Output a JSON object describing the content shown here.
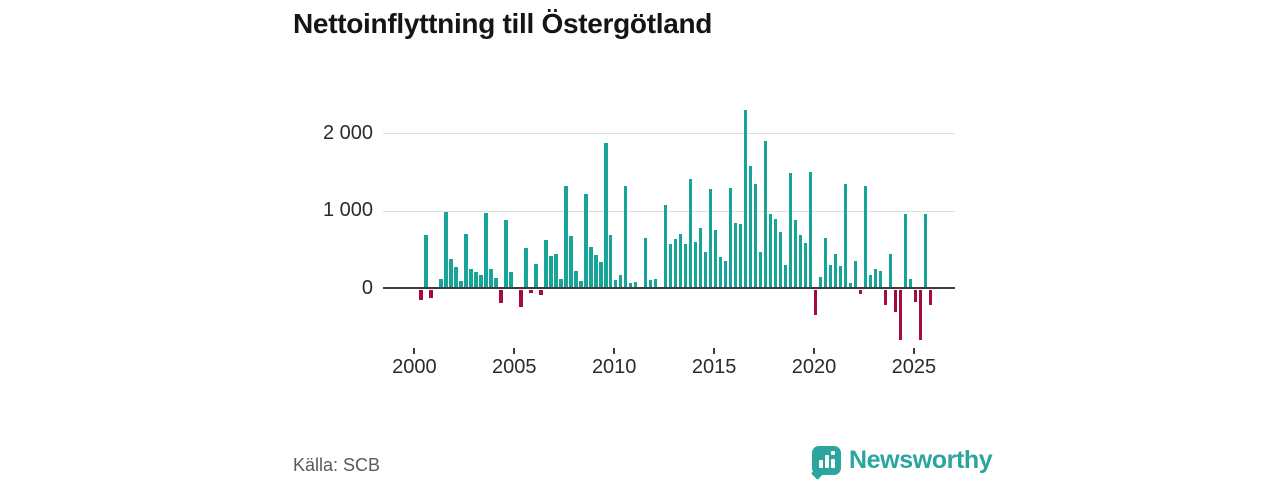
{
  "chart_data": {
    "type": "bar",
    "title": "Nettoinflyttning till Östergötland",
    "unit": "persons (net migration per quarter)",
    "frequency": "quarterly",
    "start": "2000 Q1",
    "end": "2025 Q4",
    "ylim": [
      -700,
      2400
    ],
    "grid": "horizontal",
    "y_ticks": [
      {
        "label": "2 000",
        "value": 2000
      },
      {
        "label": "1 000",
        "value": 1000
      },
      {
        "label": "0",
        "value": 0
      }
    ],
    "x_ticks": [
      "2000",
      "2005",
      "2010",
      "2015",
      "2020",
      "2025"
    ],
    "positive_color": "#17a59a",
    "negative_color": "#a50b3c",
    "years": [
      {
        "year": 2000,
        "values": [
          0,
          -130,
          680,
          -100
        ]
      },
      {
        "year": 2001,
        "values": [
          0,
          110,
          980,
          370
        ]
      },
      {
        "year": 2002,
        "values": [
          270,
          95,
          690,
          250
        ]
      },
      {
        "year": 2003,
        "values": [
          200,
          170,
          970,
          250
        ]
      },
      {
        "year": 2004,
        "values": [
          125,
          -170,
          880,
          200
        ]
      },
      {
        "year": 2005,
        "values": [
          0,
          -215,
          510,
          -40
        ]
      },
      {
        "year": 2006,
        "values": [
          310,
          -65,
          625,
          410
        ]
      },
      {
        "year": 2007,
        "values": [
          440,
          110,
          1310,
          670
        ]
      },
      {
        "year": 2008,
        "values": [
          220,
          95,
          1210,
          530
        ]
      },
      {
        "year": 2009,
        "values": [
          420,
          340,
          1870,
          680
        ]
      },
      {
        "year": 2010,
        "values": [
          100,
          170,
          1310,
          65
        ]
      },
      {
        "year": 2011,
        "values": [
          75,
          0,
          650,
          100
        ]
      },
      {
        "year": 2012,
        "values": [
          110,
          0,
          1070,
          570
        ]
      },
      {
        "year": 2013,
        "values": [
          630,
          690,
          570,
          1400
        ]
      },
      {
        "year": 2014,
        "values": [
          595,
          780,
          460,
          1280
        ]
      },
      {
        "year": 2015,
        "values": [
          750,
          400,
          350,
          1290
        ]
      },
      {
        "year": 2016,
        "values": [
          840,
          820,
          2290,
          1570
        ]
      },
      {
        "year": 2017,
        "values": [
          1340,
          470,
          1890,
          950
        ]
      },
      {
        "year": 2018,
        "values": [
          890,
          720,
          300,
          1480
        ]
      },
      {
        "year": 2019,
        "values": [
          880,
          680,
          580,
          1490
        ]
      },
      {
        "year": 2020,
        "values": [
          -320,
          140,
          650,
          300
        ]
      },
      {
        "year": 2021,
        "values": [
          440,
          290,
          1340,
          65
        ]
      },
      {
        "year": 2022,
        "values": [
          350,
          -50,
          1315,
          170
        ]
      },
      {
        "year": 2023,
        "values": [
          250,
          220,
          -190,
          440
        ]
      },
      {
        "year": 2024,
        "values": [
          -290,
          -650,
          950,
          110
        ]
      },
      {
        "year": 2025,
        "values": [
          -160,
          -650,
          950,
          -190
        ]
      }
    ]
  },
  "footer": {
    "source": "Källa: SCB",
    "logo_text": "Newsworthy"
  },
  "colors": {
    "grid": "#dedede",
    "zero_line": "#3d3d3d",
    "axis_text": "#2b2b2b",
    "title_text": "#151515",
    "source_text": "#595959",
    "brand_teal": "#2ba59d"
  }
}
